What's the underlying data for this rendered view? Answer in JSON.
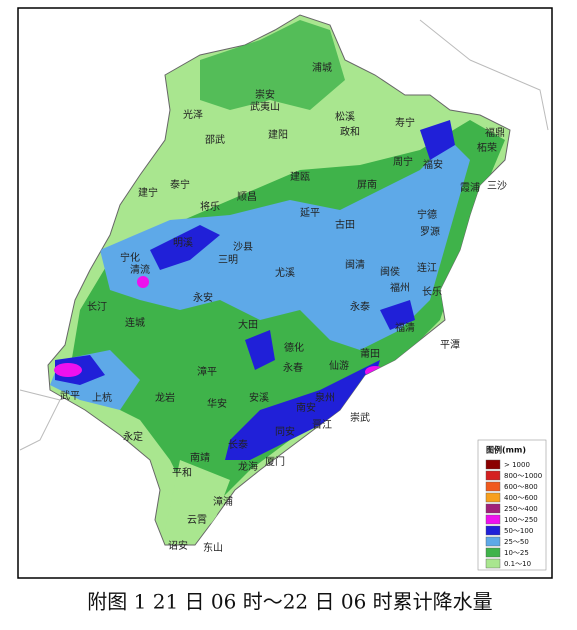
{
  "map": {
    "places": [
      "浦城",
      "崇安",
      "武夷山",
      "光泽",
      "邵武",
      "建阳",
      "松溪",
      "政和",
      "寿宁",
      "柘荣",
      "福鼎",
      "周宁",
      "福安",
      "霞浦",
      "三沙",
      "建宁",
      "泰宁",
      "将乐",
      "顺昌",
      "建瓯",
      "屏南",
      "古田",
      "宁德",
      "罗源",
      "延平",
      "沙县",
      "三明",
      "明溪",
      "宁化",
      "清流",
      "永安",
      "尤溪",
      "闽清",
      "闽侯",
      "连江",
      "福州",
      "长乐",
      "长汀",
      "连城",
      "大田",
      "德化",
      "永泰",
      "福清",
      "平潭",
      "漳平",
      "永春",
      "仙游",
      "莆田",
      "武平",
      "上杭",
      "龙岩",
      "华安",
      "安溪",
      "南安",
      "泉州",
      "晋江",
      "崇武",
      "永定",
      "南靖",
      "长泰",
      "同安",
      "厦门",
      "龙海",
      "平和",
      "漳浦",
      "云霄",
      "诏安",
      "东山"
    ]
  },
  "legend": {
    "title": "图例(mm)",
    "items": [
      {
        "label": "> 1000",
        "color": "#8b0000"
      },
      {
        "label": "800～1000",
        "color": "#d42020"
      },
      {
        "label": "600～800",
        "color": "#f05a1e"
      },
      {
        "label": "400～600",
        "color": "#f7a01e"
      },
      {
        "label": "250～400",
        "color": "#a0207a"
      },
      {
        "label": "100～250",
        "color": "#ee11ee"
      },
      {
        "label": "50～100",
        "color": "#2020d8"
      },
      {
        "label": "25～50",
        "color": "#5ea9e8"
      },
      {
        "label": "10～25",
        "color": "#3fb34a"
      },
      {
        "label": "0.1～10",
        "color": "#a9e68f"
      }
    ]
  },
  "caption": "附图 1 21 日 06 时～22 日 06 时累计降水量"
}
